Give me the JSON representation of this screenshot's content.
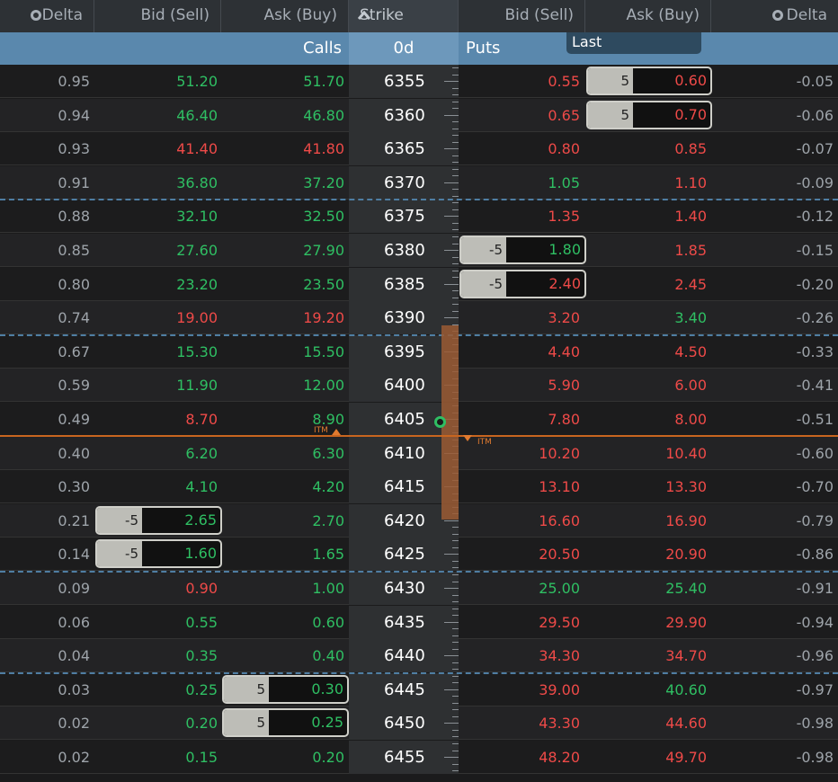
{
  "header": {
    "delta_left": "Delta",
    "bid_sell_left": "Bid (Sell)",
    "ask_buy_left": "Ask (Buy)",
    "strike": "Strike",
    "bid_sell_right": "Bid (Sell)",
    "ask_buy_right": "Ask (Buy)",
    "delta_right": "Delta"
  },
  "subheader": {
    "calls": "Calls",
    "expiry": "0d",
    "puts": "Puts",
    "last_button": "Last"
  },
  "itm_label": "ITM",
  "colors": {
    "green": "#2fbf63",
    "red": "#ee4a48",
    "header_blue": "#5a88ad",
    "itm_orange": "#c8651f"
  },
  "rows": [
    {
      "strike": "6355",
      "c_delta": "0.95",
      "c_bid": "51.20",
      "c_bid_color": "green",
      "c_ask": "51.70",
      "c_ask_color": "green",
      "p_bid": "0.55",
      "p_bid_color": "red",
      "p_ask": "0.60",
      "p_ask_color": "red",
      "p_delta": "-0.05"
    },
    {
      "strike": "6360",
      "c_delta": "0.94",
      "c_bid": "46.40",
      "c_bid_color": "green",
      "c_ask": "46.80",
      "c_ask_color": "green",
      "p_bid": "0.65",
      "p_bid_color": "red",
      "p_ask": "0.70",
      "p_ask_color": "red",
      "p_delta": "-0.06"
    },
    {
      "strike": "6365",
      "c_delta": "0.93",
      "c_bid": "41.40",
      "c_bid_color": "red",
      "c_ask": "41.80",
      "c_ask_color": "red",
      "p_bid": "0.80",
      "p_bid_color": "red",
      "p_ask": "0.85",
      "p_ask_color": "red",
      "p_delta": "-0.07"
    },
    {
      "strike": "6370",
      "c_delta": "0.91",
      "c_bid": "36.80",
      "c_bid_color": "green",
      "c_ask": "37.20",
      "c_ask_color": "green",
      "p_bid": "1.05",
      "p_bid_color": "green",
      "p_ask": "1.10",
      "p_ask_color": "red",
      "p_delta": "-0.09"
    },
    {
      "strike": "6375",
      "c_delta": "0.88",
      "c_bid": "32.10",
      "c_bid_color": "green",
      "c_ask": "32.50",
      "c_ask_color": "green",
      "p_bid": "1.35",
      "p_bid_color": "red",
      "p_ask": "1.40",
      "p_ask_color": "red",
      "p_delta": "-0.12"
    },
    {
      "strike": "6380",
      "c_delta": "0.85",
      "c_bid": "27.60",
      "c_bid_color": "green",
      "c_ask": "27.90",
      "c_ask_color": "green",
      "p_bid": "1.80",
      "p_bid_color": "green",
      "p_ask": "1.85",
      "p_ask_color": "red",
      "p_delta": "-0.15"
    },
    {
      "strike": "6385",
      "c_delta": "0.80",
      "c_bid": "23.20",
      "c_bid_color": "green",
      "c_ask": "23.50",
      "c_ask_color": "green",
      "p_bid": "2.40",
      "p_bid_color": "red",
      "p_ask": "2.45",
      "p_ask_color": "red",
      "p_delta": "-0.20"
    },
    {
      "strike": "6390",
      "c_delta": "0.74",
      "c_bid": "19.00",
      "c_bid_color": "red",
      "c_ask": "19.20",
      "c_ask_color": "red",
      "p_bid": "3.20",
      "p_bid_color": "red",
      "p_ask": "3.40",
      "p_ask_color": "green",
      "p_delta": "-0.26"
    },
    {
      "strike": "6395",
      "c_delta": "0.67",
      "c_bid": "15.30",
      "c_bid_color": "green",
      "c_ask": "15.50",
      "c_ask_color": "green",
      "p_bid": "4.40",
      "p_bid_color": "red",
      "p_ask": "4.50",
      "p_ask_color": "red",
      "p_delta": "-0.33"
    },
    {
      "strike": "6400",
      "c_delta": "0.59",
      "c_bid": "11.90",
      "c_bid_color": "green",
      "c_ask": "12.00",
      "c_ask_color": "green",
      "p_bid": "5.90",
      "p_bid_color": "red",
      "p_ask": "6.00",
      "p_ask_color": "red",
      "p_delta": "-0.41"
    },
    {
      "strike": "6405",
      "c_delta": "0.49",
      "c_bid": "8.70",
      "c_bid_color": "red",
      "c_ask": "8.90",
      "c_ask_color": "green",
      "p_bid": "7.80",
      "p_bid_color": "red",
      "p_ask": "8.00",
      "p_ask_color": "red",
      "p_delta": "-0.51"
    },
    {
      "strike": "6410",
      "c_delta": "0.40",
      "c_bid": "6.20",
      "c_bid_color": "green",
      "c_ask": "6.30",
      "c_ask_color": "green",
      "p_bid": "10.20",
      "p_bid_color": "red",
      "p_ask": "10.40",
      "p_ask_color": "red",
      "p_delta": "-0.60"
    },
    {
      "strike": "6415",
      "c_delta": "0.30",
      "c_bid": "4.10",
      "c_bid_color": "green",
      "c_ask": "4.20",
      "c_ask_color": "green",
      "p_bid": "13.10",
      "p_bid_color": "red",
      "p_ask": "13.30",
      "p_ask_color": "red",
      "p_delta": "-0.70"
    },
    {
      "strike": "6420",
      "c_delta": "0.21",
      "c_bid": "2.65",
      "c_bid_color": "green",
      "c_ask": "2.70",
      "c_ask_color": "green",
      "p_bid": "16.60",
      "p_bid_color": "red",
      "p_ask": "16.90",
      "p_ask_color": "red",
      "p_delta": "-0.79"
    },
    {
      "strike": "6425",
      "c_delta": "0.14",
      "c_bid": "1.60",
      "c_bid_color": "green",
      "c_ask": "1.65",
      "c_ask_color": "green",
      "p_bid": "20.50",
      "p_bid_color": "red",
      "p_ask": "20.90",
      "p_ask_color": "red",
      "p_delta": "-0.86"
    },
    {
      "strike": "6430",
      "c_delta": "0.09",
      "c_bid": "0.90",
      "c_bid_color": "red",
      "c_ask": "1.00",
      "c_ask_color": "green",
      "p_bid": "25.00",
      "p_bid_color": "green",
      "p_ask": "25.40",
      "p_ask_color": "green",
      "p_delta": "-0.91"
    },
    {
      "strike": "6435",
      "c_delta": "0.06",
      "c_bid": "0.55",
      "c_bid_color": "green",
      "c_ask": "0.60",
      "c_ask_color": "green",
      "p_bid": "29.50",
      "p_bid_color": "red",
      "p_ask": "29.90",
      "p_ask_color": "red",
      "p_delta": "-0.94"
    },
    {
      "strike": "6440",
      "c_delta": "0.04",
      "c_bid": "0.35",
      "c_bid_color": "green",
      "c_ask": "0.40",
      "c_ask_color": "green",
      "p_bid": "34.30",
      "p_bid_color": "red",
      "p_ask": "34.70",
      "p_ask_color": "red",
      "p_delta": "-0.96"
    },
    {
      "strike": "6445",
      "c_delta": "0.03",
      "c_bid": "0.25",
      "c_bid_color": "green",
      "c_ask": "0.30",
      "c_ask_color": "green",
      "p_bid": "39.00",
      "p_bid_color": "red",
      "p_ask": "40.60",
      "p_ask_color": "green",
      "p_delta": "-0.97"
    },
    {
      "strike": "6450",
      "c_delta": "0.02",
      "c_bid": "0.20",
      "c_bid_color": "green",
      "c_ask": "0.25",
      "c_ask_color": "green",
      "p_bid": "43.30",
      "p_bid_color": "red",
      "p_ask": "44.60",
      "p_ask_color": "red",
      "p_delta": "-0.98"
    },
    {
      "strike": "6455",
      "c_delta": "0.02",
      "c_bid": "0.15",
      "c_bid_color": "green",
      "c_ask": "0.20",
      "c_ask_color": "green",
      "p_bid": "48.20",
      "p_bid_color": "red",
      "p_ask": "49.70",
      "p_ask_color": "red",
      "p_delta": "-0.98"
    }
  ],
  "orders": [
    {
      "row": 0,
      "column": "p_ask",
      "qty": "5",
      "price": "0.60",
      "color": "red"
    },
    {
      "row": 1,
      "column": "p_ask",
      "qty": "5",
      "price": "0.70",
      "color": "red"
    },
    {
      "row": 5,
      "column": "p_bid",
      "qty": "-5",
      "price": "1.80",
      "color": "green"
    },
    {
      "row": 6,
      "column": "p_bid",
      "qty": "-5",
      "price": "2.40",
      "color": "red"
    },
    {
      "row": 13,
      "column": "c_bid",
      "qty": "-5",
      "price": "2.65",
      "color": "green"
    },
    {
      "row": 14,
      "column": "c_bid",
      "qty": "-5",
      "price": "1.60",
      "color": "green"
    },
    {
      "row": 18,
      "column": "c_ask",
      "qty": "5",
      "price": "0.30",
      "color": "green"
    },
    {
      "row": 19,
      "column": "c_ask",
      "qty": "5",
      "price": "0.25",
      "color": "green"
    }
  ],
  "dash_after_rows": [
    3,
    7,
    14,
    17
  ]
}
